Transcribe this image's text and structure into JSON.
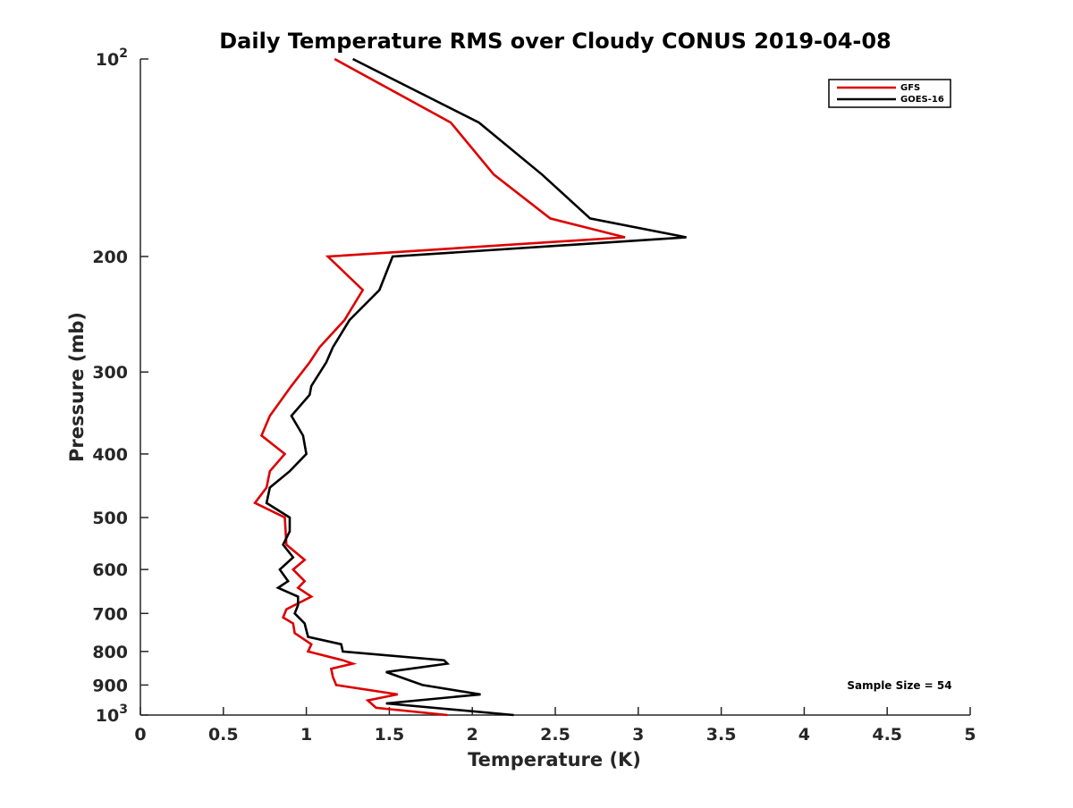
{
  "chart_data": {
    "type": "line",
    "title": "Daily Temperature RMS over Cloudy CONUS 2019-04-08",
    "xlabel": "Temperature (K)",
    "ylabel": "Pressure (mb)",
    "xlim": [
      0,
      5
    ],
    "ylim": [
      100,
      1000
    ],
    "y_scale": "log",
    "y_reversed": true,
    "grid": false,
    "legend_position": "top-right",
    "annotation": "Sample Size = 54",
    "x_ticks": [
      0,
      0.5,
      1,
      1.5,
      2,
      2.5,
      3,
      3.5,
      4,
      4.5,
      5
    ],
    "x_tick_labels": [
      "0",
      "0.5",
      "1",
      "1.5",
      "2",
      "2.5",
      "3",
      "3.5",
      "4",
      "4.5",
      "5"
    ],
    "y_ticks": [
      100,
      200,
      300,
      400,
      500,
      600,
      700,
      800,
      900,
      1000
    ],
    "y_tick_labels": [
      {
        "base": "10",
        "exp": "2"
      },
      {
        "base": "200",
        "exp": ""
      },
      {
        "base": "300",
        "exp": ""
      },
      {
        "base": "400",
        "exp": ""
      },
      {
        "base": "500",
        "exp": ""
      },
      {
        "base": "600",
        "exp": ""
      },
      {
        "base": "700",
        "exp": ""
      },
      {
        "base": "800",
        "exp": ""
      },
      {
        "base": "900",
        "exp": ""
      },
      {
        "base": "10",
        "exp": "3"
      }
    ],
    "series": [
      {
        "name": "GFS",
        "color": "#dd0000",
        "points": [
          [
            1.17,
            100
          ],
          [
            1.87,
            125
          ],
          [
            2.13,
            150
          ],
          [
            2.47,
            175
          ],
          [
            2.92,
            187
          ],
          [
            1.13,
            200
          ],
          [
            1.34,
            225
          ],
          [
            1.23,
            250
          ],
          [
            1.08,
            275
          ],
          [
            1.02,
            290
          ],
          [
            0.91,
            315
          ],
          [
            0.78,
            350
          ],
          [
            0.73,
            375
          ],
          [
            0.87,
            400
          ],
          [
            0.78,
            425
          ],
          [
            0.76,
            450
          ],
          [
            0.69,
            475
          ],
          [
            0.87,
            500
          ],
          [
            0.88,
            550
          ],
          [
            0.99,
            580
          ],
          [
            0.92,
            600
          ],
          [
            0.99,
            625
          ],
          [
            0.95,
            640
          ],
          [
            1.03,
            660
          ],
          [
            0.88,
            690
          ],
          [
            0.86,
            710
          ],
          [
            0.92,
            725
          ],
          [
            0.93,
            750
          ],
          [
            1.03,
            780
          ],
          [
            1.01,
            800
          ],
          [
            1.22,
            825
          ],
          [
            1.28,
            835
          ],
          [
            1.15,
            850
          ],
          [
            1.16,
            875
          ],
          [
            1.18,
            900
          ],
          [
            1.55,
            930
          ],
          [
            1.37,
            950
          ],
          [
            1.42,
            975
          ],
          [
            1.85,
            1000
          ]
        ]
      },
      {
        "name": "GOES-16",
        "color": "#000000",
        "points": [
          [
            1.28,
            100
          ],
          [
            2.04,
            125
          ],
          [
            2.42,
            150
          ],
          [
            2.71,
            175
          ],
          [
            3.29,
            187
          ],
          [
            1.52,
            200
          ],
          [
            1.44,
            225
          ],
          [
            1.26,
            250
          ],
          [
            1.16,
            275
          ],
          [
            1.12,
            290
          ],
          [
            1.03,
            315
          ],
          [
            1.02,
            325
          ],
          [
            0.91,
            350
          ],
          [
            0.98,
            375
          ],
          [
            1.0,
            400
          ],
          [
            0.9,
            425
          ],
          [
            0.78,
            450
          ],
          [
            0.76,
            475
          ],
          [
            0.9,
            500
          ],
          [
            0.9,
            525
          ],
          [
            0.86,
            550
          ],
          [
            0.92,
            575
          ],
          [
            0.84,
            600
          ],
          [
            0.89,
            625
          ],
          [
            0.83,
            640
          ],
          [
            0.95,
            660
          ],
          [
            0.95,
            680
          ],
          [
            0.93,
            700
          ],
          [
            0.99,
            725
          ],
          [
            1.01,
            760
          ],
          [
            1.21,
            780
          ],
          [
            1.22,
            800
          ],
          [
            1.83,
            825
          ],
          [
            1.85,
            835
          ],
          [
            1.48,
            860
          ],
          [
            1.7,
            900
          ],
          [
            2.05,
            930
          ],
          [
            1.48,
            960
          ],
          [
            2.25,
            1000
          ]
        ]
      }
    ]
  }
}
